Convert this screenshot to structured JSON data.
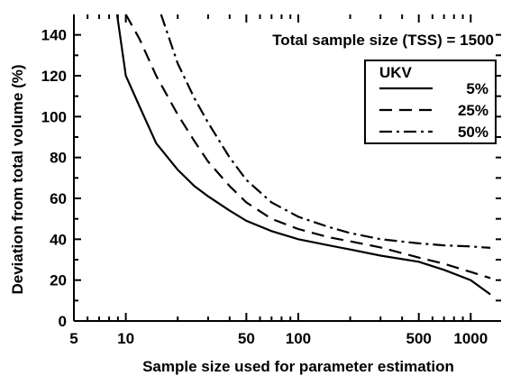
{
  "chart_data": {
    "type": "line",
    "title": "",
    "xlabel": "Sample size used for parameter estimation",
    "ylabel": "Deviation from total volume (%)",
    "x_scale": "log",
    "xlim": [
      5,
      1500
    ],
    "ylim": [
      0,
      150
    ],
    "x_ticks": [
      5,
      10,
      50,
      100,
      500,
      1000
    ],
    "x_tick_labels": [
      "5",
      "10",
      "50",
      "100",
      "500",
      "1000"
    ],
    "y_ticks": [
      0,
      20,
      40,
      60,
      80,
      100,
      120,
      140
    ],
    "y_tick_labels": [
      "0",
      "20",
      "40",
      "60",
      "80",
      "100",
      "120",
      "140"
    ],
    "annotation": "Total sample size (TSS) = 1500",
    "legend": {
      "title": "UKV",
      "position": "top-right",
      "entries": [
        {
          "label": "5%",
          "dash": "solid"
        },
        {
          "label": "25%",
          "dash": "dashed"
        },
        {
          "label": "50%",
          "dash": "dashdot"
        }
      ]
    },
    "series": [
      {
        "name": "5%",
        "dash": "solid",
        "points": [
          [
            8.9,
            150
          ],
          [
            10,
            120
          ],
          [
            12,
            105
          ],
          [
            15,
            87
          ],
          [
            20,
            74
          ],
          [
            25,
            66
          ],
          [
            30,
            61
          ],
          [
            40,
            54
          ],
          [
            50,
            49
          ],
          [
            70,
            44
          ],
          [
            100,
            40
          ],
          [
            150,
            37
          ],
          [
            200,
            35
          ],
          [
            300,
            32
          ],
          [
            500,
            29
          ],
          [
            700,
            25
          ],
          [
            1000,
            20
          ],
          [
            1300,
            13
          ]
        ]
      },
      {
        "name": "25%",
        "dash": "dashed",
        "points": [
          [
            10,
            150
          ],
          [
            12,
            138
          ],
          [
            15,
            120
          ],
          [
            20,
            101
          ],
          [
            25,
            88
          ],
          [
            30,
            78
          ],
          [
            40,
            66
          ],
          [
            50,
            58
          ],
          [
            70,
            50
          ],
          [
            100,
            45
          ],
          [
            150,
            41
          ],
          [
            200,
            39
          ],
          [
            300,
            36
          ],
          [
            500,
            31
          ],
          [
            700,
            28
          ],
          [
            1000,
            24
          ],
          [
            1300,
            21
          ]
        ]
      },
      {
        "name": "50%",
        "dash": "dashdot",
        "points": [
          [
            16,
            150
          ],
          [
            20,
            126
          ],
          [
            25,
            109
          ],
          [
            30,
            97
          ],
          [
            40,
            80
          ],
          [
            50,
            69
          ],
          [
            70,
            58
          ],
          [
            100,
            51
          ],
          [
            150,
            46
          ],
          [
            200,
            43
          ],
          [
            300,
            40
          ],
          [
            500,
            38
          ],
          [
            700,
            37
          ],
          [
            1000,
            36.5
          ],
          [
            1300,
            35.8
          ]
        ]
      }
    ]
  }
}
